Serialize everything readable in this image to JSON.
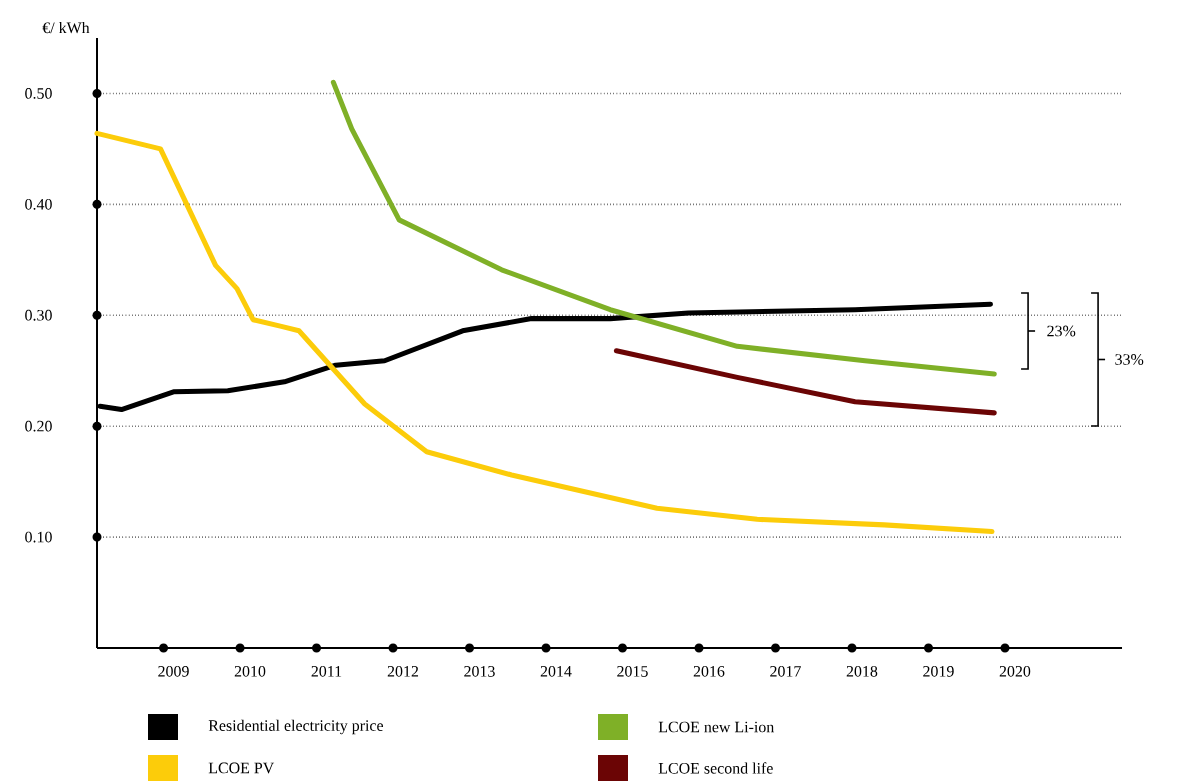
{
  "chart_data": {
    "type": "line",
    "ylabel": "€/ kWh",
    "xlim": [
      2008,
      2021.4
    ],
    "xticks": [
      2009,
      2010,
      2011,
      2012,
      2013,
      2014,
      2015,
      2016,
      2017,
      2018,
      2019,
      2020
    ],
    "ylim": [
      0,
      0.55
    ],
    "yticks": [
      {
        "value": 0.1,
        "label": "0.10"
      },
      {
        "value": 0.2,
        "label": "0.20"
      },
      {
        "value": 0.3,
        "label": "0.30"
      },
      {
        "value": 0.4,
        "label": "0.40"
      },
      {
        "value": 0.5,
        "label": "0.50"
      }
    ],
    "grid": "y",
    "legend": "bottom",
    "marker": "none",
    "line_style": "solid",
    "series": [
      {
        "name": "Residential electricity price",
        "color": "#000000",
        "x": [
          2008.04,
          2008.32,
          2009,
          2009.71,
          2010.45,
          2011.12,
          2011.76,
          2012.78,
          2013.68,
          2014.71,
          2015.73,
          2017.91,
          2019.68
        ],
        "values": [
          0.218,
          0.215,
          0.231,
          0.232,
          0.24,
          0.255,
          0.259,
          0.286,
          0.297,
          0.297,
          0.302,
          0.305,
          0.31
        ]
      },
      {
        "name": "LCOE PV",
        "color": "#fccc0a",
        "x": [
          2008,
          2008.83,
          2009.55,
          2009.83,
          2010.04,
          2010.41,
          2010.64,
          2011.5,
          2012.31,
          2013.42,
          2015.32,
          2016.63,
          2018.29,
          2019.7
        ],
        "values": [
          0.464,
          0.45,
          0.345,
          0.324,
          0.296,
          0.29,
          0.286,
          0.22,
          0.177,
          0.156,
          0.126,
          0.116,
          0.111,
          0.105
        ]
      },
      {
        "name": "LCOE new Li-ion",
        "color": "#7fb027",
        "x": [
          2011.09,
          2011.33,
          2011.95,
          2013.29,
          2014.71,
          2016.37,
          2018.04,
          2019.73
        ],
        "values": [
          0.51,
          0.468,
          0.386,
          0.341,
          0.305,
          0.272,
          0.259,
          0.247
        ]
      },
      {
        "name": "LCOE second life",
        "color": "#6b0505",
        "x": [
          2014.79,
          2016.37,
          2017.91,
          2019.73
        ],
        "values": [
          0.268,
          0.244,
          0.222,
          0.212
        ]
      }
    ],
    "annotations": [
      "23%",
      "33%"
    ]
  }
}
